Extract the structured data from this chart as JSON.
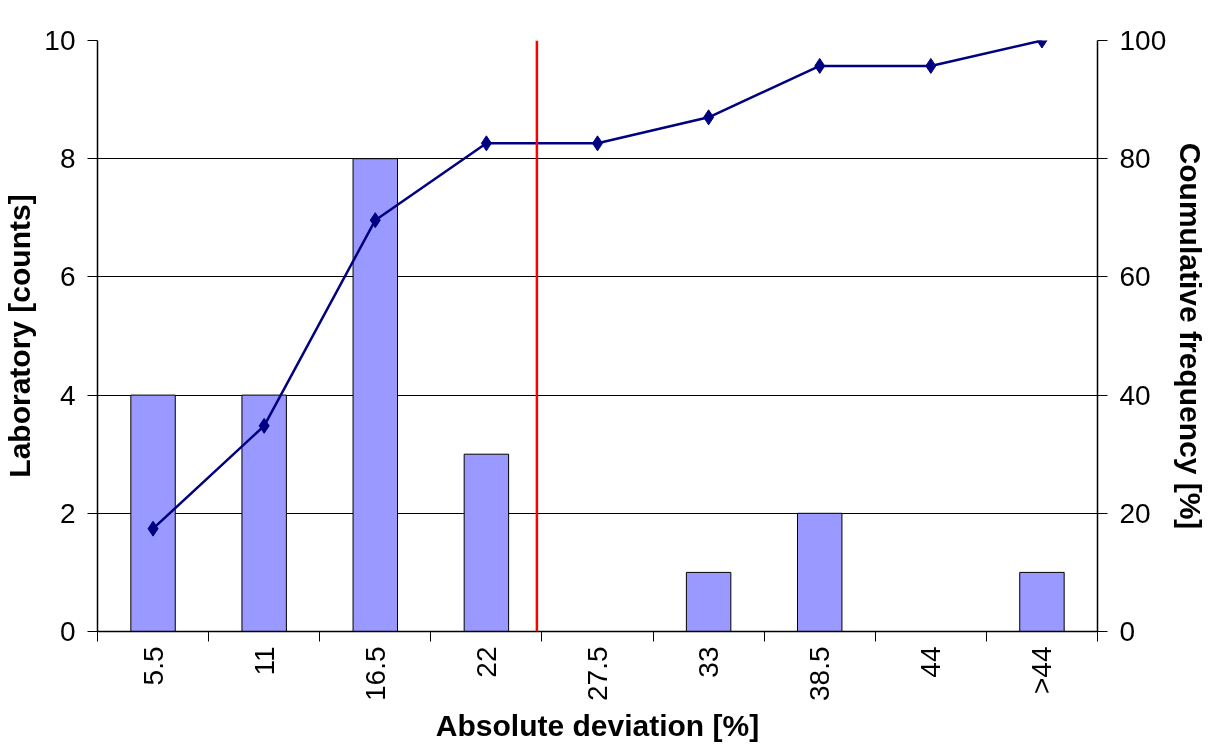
{
  "chart_data": {
    "type": "bar",
    "xlabel": "Absolute deviation [%]",
    "ylabel": "Laboratory [counts]",
    "y2label": "Coumulative frequency [%]",
    "x": [
      5.5,
      11,
      16.5,
      22,
      27.5,
      33,
      38.5,
      44,
      49.5
    ],
    "series": [
      {
        "color": "#9999ff",
        "values": [
          4,
          4,
          8,
          3,
          0,
          1,
          2,
          0,
          1
        ]
      },
      {
        "type": "line",
        "axis": "y2",
        "color": "#000080",
        "marker": "diamond",
        "values": [
          17.4,
          34.8,
          69.6,
          82.6,
          82.6,
          87.0,
          95.7,
          95.7,
          100
        ]
      }
    ],
    "xlim": [
      2.75,
      52.25
    ],
    "xticks": [
      {
        "value": 2.75,
        "label": null
      },
      5.5,
      {
        "value": 8.25,
        "label": null
      },
      11,
      {
        "value": 13.75,
        "label": null
      },
      16.5,
      {
        "value": 19.25,
        "label": null
      },
      22,
      {
        "value": 24.75,
        "label": null
      },
      27.5,
      {
        "value": 30.25,
        "label": null
      },
      33,
      {
        "value": 35.75,
        "label": null
      },
      38.5,
      {
        "value": 41.25,
        "label": null
      },
      44,
      {
        "value": 46.75,
        "label": null
      },
      {
        "value": 49.5,
        "label": ">44"
      },
      {
        "value": 52.25,
        "label": null
      }
    ],
    "ylim": [
      0,
      10
    ],
    "yticks": [
      0,
      2,
      4,
      6,
      8,
      10
    ],
    "y2lim": [
      0,
      100
    ],
    "y2ticks": [
      0,
      20,
      40,
      60,
      80,
      100
    ],
    "grid": "y",
    "ref_lines": [
      {
        "axis": "x",
        "value": 24.5,
        "color": "#ff0000"
      }
    ]
  }
}
